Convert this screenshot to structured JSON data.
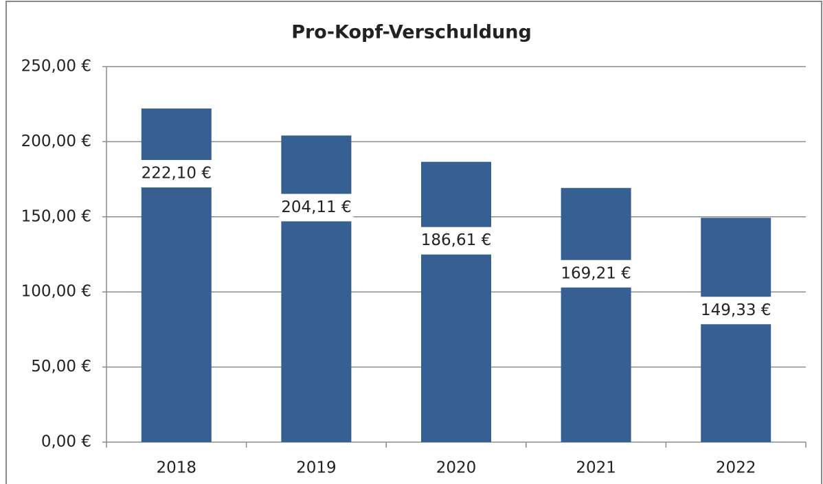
{
  "chart_data": {
    "type": "bar",
    "title": "Pro-Kopf-Verschuldung",
    "categories": [
      "2018",
      "2019",
      "2020",
      "2021",
      "2022"
    ],
    "values": [
      222.1,
      204.11,
      186.61,
      169.21,
      149.33
    ],
    "value_labels": [
      "222,10 €",
      "204,11 €",
      "186,61 €",
      "169,21 €",
      "149,33 €"
    ],
    "color": "#366092",
    "ylim": [
      0,
      250
    ],
    "yticks": [
      {
        "value": 0,
        "label": "0,00 €"
      },
      {
        "value": 50,
        "label": "50,00 €"
      },
      {
        "value": 100,
        "label": "100,00 €"
      },
      {
        "value": 150,
        "label": "150,00 €"
      },
      {
        "value": 200,
        "label": "200,00 €"
      },
      {
        "value": 250,
        "label": "250,00 €"
      }
    ],
    "grid": true
  }
}
